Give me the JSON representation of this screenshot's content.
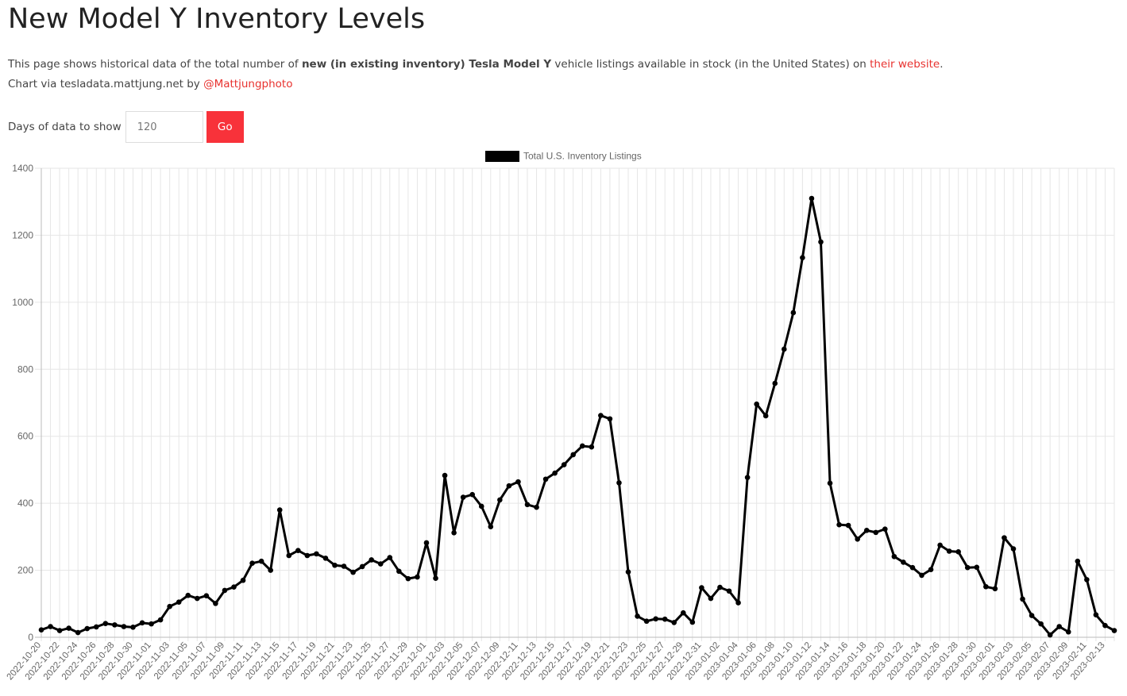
{
  "header": {
    "title": "New Model Y Inventory Levels"
  },
  "description": {
    "prefix": "This page shows historical data of the total number of ",
    "bold": "new (in existing inventory) Tesla Model Y",
    "middle": " vehicle listings available in stock (in the United States) on ",
    "link": "their website",
    "suffix": "."
  },
  "credit": {
    "prefix": "Chart via tesladata.mattjung.net by ",
    "link": "@Mattjungphoto"
  },
  "controls": {
    "label": "Days of data to show",
    "input_value": "120",
    "go_label": "Go"
  },
  "colors": {
    "accent": "#f8323a",
    "link": "#e8322f",
    "series": "#000000",
    "grid": "#e5e5e5"
  },
  "chart_data": {
    "type": "line",
    "start_date": "2022-10-20",
    "y_ticks": [
      0,
      200,
      400,
      600,
      800,
      1000,
      1200,
      1400
    ],
    "ylim": [
      0,
      1400
    ],
    "grid": true,
    "legend_position": "top-center",
    "series": [
      {
        "name": "Total U.S. Inventory Listings",
        "color": "#000000",
        "values": [
          22,
          32,
          20,
          27,
          14,
          26,
          31,
          41,
          37,
          32,
          30,
          43,
          40,
          52,
          92,
          105,
          125,
          116,
          124,
          101,
          140,
          150,
          170,
          221,
          227,
          200,
          380,
          244,
          259,
          244,
          249,
          236,
          215,
          212,
          194,
          211,
          231,
          219,
          238,
          197,
          175,
          180,
          282,
          176,
          483,
          312,
          418,
          426,
          391,
          330,
          410,
          452,
          464,
          396,
          388,
          472,
          490,
          515,
          545,
          571,
          568,
          662,
          652,
          461,
          195,
          63,
          48,
          55,
          54,
          44,
          73,
          45,
          148,
          116,
          149,
          138,
          103,
          477,
          696,
          661,
          758,
          860,
          969,
          1133,
          1310,
          1180,
          460,
          336,
          334,
          293,
          319,
          313,
          323,
          241,
          224,
          208,
          185,
          202,
          275,
          257,
          255,
          208,
          209,
          151,
          145,
          297,
          264,
          114,
          65,
          40,
          7,
          32,
          16,
          227,
          172,
          67,
          35,
          20
        ]
      }
    ]
  }
}
